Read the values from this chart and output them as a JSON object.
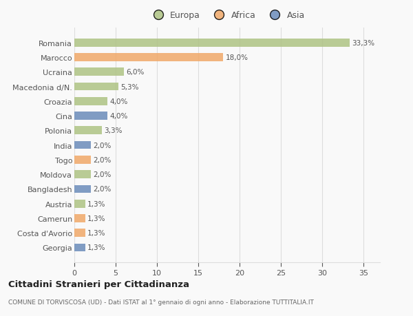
{
  "categories": [
    "Romania",
    "Marocco",
    "Ucraina",
    "Macedonia d/N.",
    "Croazia",
    "Cina",
    "Polonia",
    "India",
    "Togo",
    "Moldova",
    "Bangladesh",
    "Austria",
    "Camerun",
    "Costa d'Avorio",
    "Georgia"
  ],
  "values": [
    33.3,
    18.0,
    6.0,
    5.3,
    4.0,
    4.0,
    3.3,
    2.0,
    2.0,
    2.0,
    2.0,
    1.3,
    1.3,
    1.3,
    1.3
  ],
  "labels": [
    "33,3%",
    "18,0%",
    "6,0%",
    "5,3%",
    "4,0%",
    "4,0%",
    "3,3%",
    "2,0%",
    "2,0%",
    "2,0%",
    "2,0%",
    "1,3%",
    "1,3%",
    "1,3%",
    "1,3%"
  ],
  "colors": [
    "#aec384",
    "#f0a868",
    "#aec384",
    "#aec384",
    "#aec384",
    "#6b8cba",
    "#aec384",
    "#6b8cba",
    "#f0a868",
    "#aec384",
    "#6b8cba",
    "#aec384",
    "#f0a868",
    "#f0a868",
    "#6b8cba"
  ],
  "legend_labels": [
    "Europa",
    "Africa",
    "Asia"
  ],
  "legend_colors": [
    "#aec384",
    "#f0a868",
    "#6b8cba"
  ],
  "xlim": [
    0,
    37
  ],
  "xticks": [
    0,
    5,
    10,
    15,
    20,
    25,
    30,
    35
  ],
  "title": "Cittadini Stranieri per Cittadinanza",
  "subtitle": "COMUNE DI TORVISCOSA (UD) - Dati ISTAT al 1° gennaio di ogni anno - Elaborazione TUTTITALIA.IT",
  "background_color": "#f9f9f9",
  "bar_height": 0.55,
  "grid_color": "#dddddd",
  "text_color": "#555555"
}
